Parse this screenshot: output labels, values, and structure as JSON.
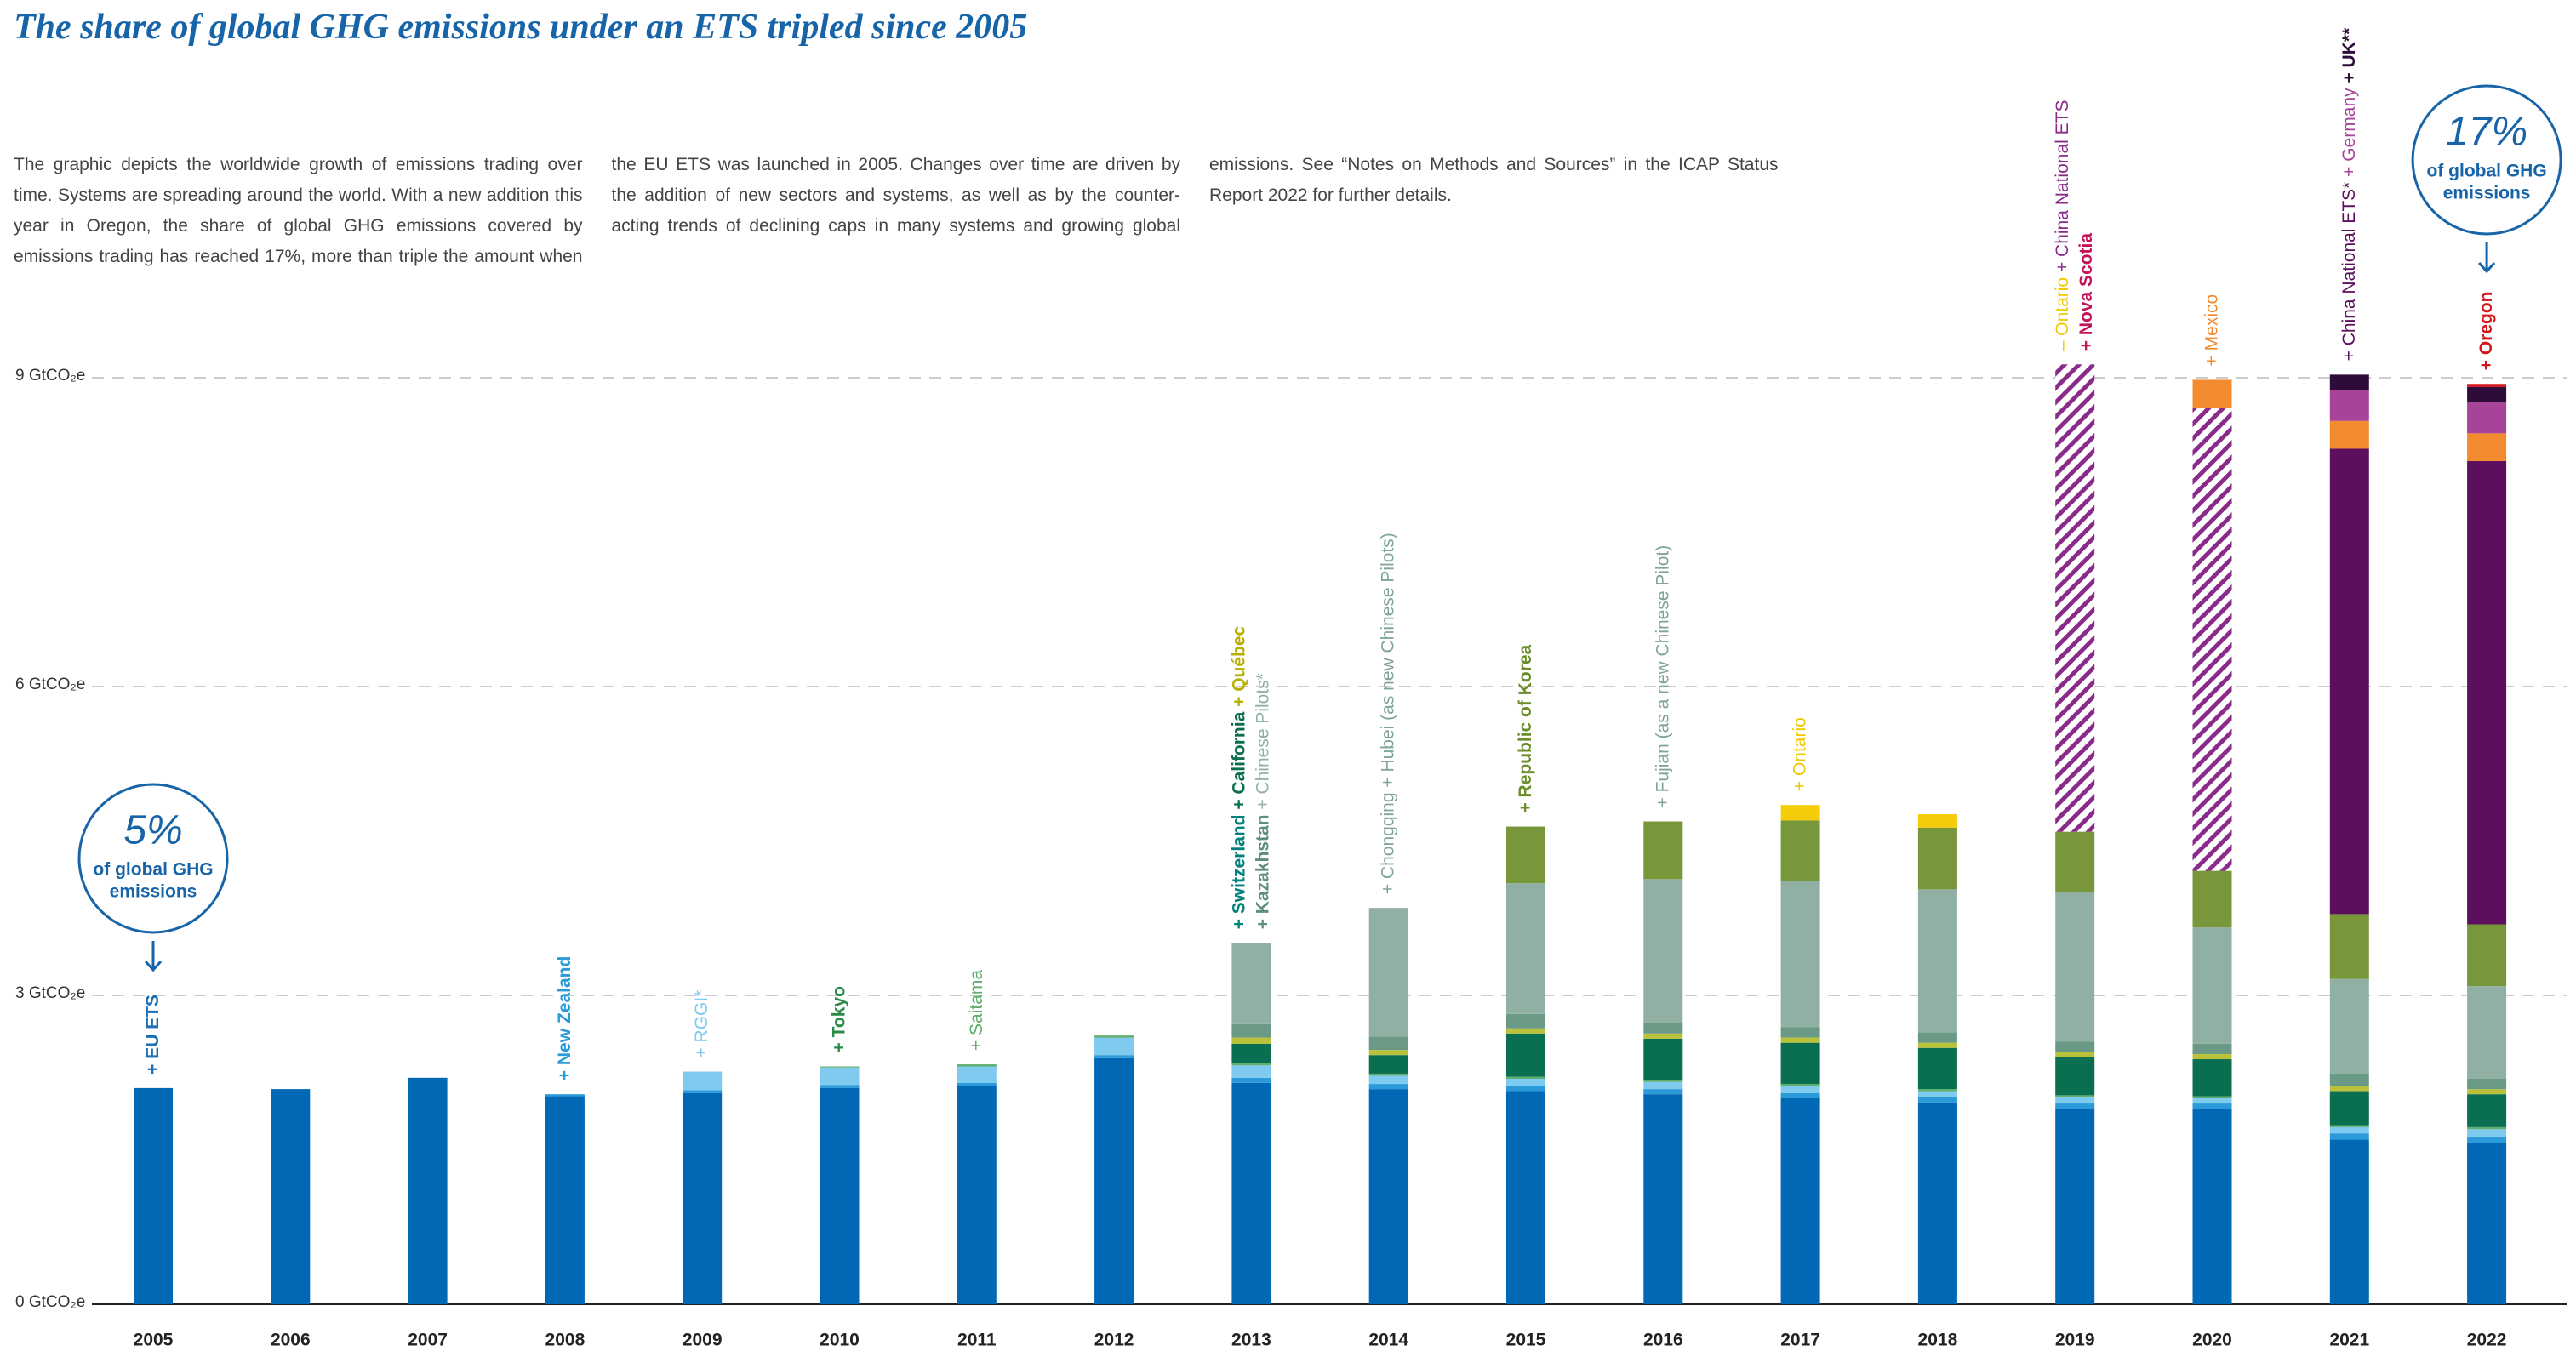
{
  "chart_data": {
    "type": "bar",
    "stacked": true,
    "title": "The share of global GHG emissions under an ETS tripled since 2005",
    "description": "The graphic depicts the worldwide growth of emissions trading over time. Systems are spreading around the world. With a new addition this year in Oregon, the share of global GHG emissions covered by emissions trading has reached 17%, more than triple the amount when the EU ETS was launched in 2005. Changes over time are driven by the addition of new sectors and systems, as well as by the counter-acting trends of declining caps in many systems and growing global emissions. See “Notes on Methods and Sources” in the ICAP Status Report 2022 for further details.",
    "categories": [
      "2005",
      "2006",
      "2007",
      "2008",
      "2009",
      "2010",
      "2011",
      "2012",
      "2013",
      "2014",
      "2015",
      "2016",
      "2017",
      "2018",
      "2019",
      "2020",
      "2021",
      "2022"
    ],
    "ylim": [
      0,
      9
    ],
    "yticks": [
      {
        "value": 0,
        "label": "0 GtCO₂e"
      },
      {
        "value": 3,
        "label": "3 GtCO₂e"
      },
      {
        "value": 6,
        "label": "6 GtCO₂e"
      },
      {
        "value": 9,
        "label": "9 GtCO₂e"
      }
    ],
    "grid": true,
    "series": [
      {
        "color": "#0068b4",
        "values": [
          2.1,
          2.09,
          2.2,
          2.02,
          2.05,
          2.1,
          2.12,
          2.39,
          2.15,
          2.09,
          2.07,
          2.04,
          2.0,
          1.96,
          1.9,
          1.9,
          1.6,
          1.57
        ]
      },
      {
        "color": "#2a9ad8",
        "values": [
          0,
          0,
          0,
          0.02,
          0.03,
          0.03,
          0.03,
          0.03,
          0.05,
          0.05,
          0.05,
          0.05,
          0.05,
          0.05,
          0.05,
          0.05,
          0.06,
          0.06
        ]
      },
      {
        "color": "#7ecbef",
        "values": [
          0,
          0,
          0,
          0,
          0.18,
          0.17,
          0.16,
          0.17,
          0.12,
          0.08,
          0.07,
          0.07,
          0.07,
          0.06,
          0.06,
          0.05,
          0.06,
          0.07
        ]
      },
      {
        "color": "#5fae6b",
        "values": [
          0,
          0,
          0,
          0,
          0,
          0.01,
          0.02,
          0.02,
          0.02,
          0.02,
          0.02,
          0.02,
          0.02,
          0.02,
          0.02,
          0.02,
          0.02,
          0.02
        ]
      },
      {
        "color": "#0a6e50",
        "values": [
          0,
          0,
          0,
          0,
          0,
          0,
          0,
          0,
          0.19,
          0.18,
          0.42,
          0.4,
          0.4,
          0.4,
          0.37,
          0.36,
          0.33,
          0.32
        ]
      },
      {
        "color": "#b9c23a",
        "values": [
          0,
          0,
          0,
          0,
          0,
          0,
          0,
          0,
          0.06,
          0.05,
          0.05,
          0.05,
          0.05,
          0.05,
          0.05,
          0.05,
          0.05,
          0.05
        ]
      },
      {
        "color": "#6a9a86",
        "values": [
          0,
          0,
          0,
          0,
          0,
          0,
          0,
          0,
          0.13,
          0.13,
          0.14,
          0.1,
          0.1,
          0.1,
          0.1,
          0.1,
          0.12,
          0.1
        ]
      },
      {
        "color": "#8fb0a3",
        "values": [
          0,
          0,
          0,
          0,
          0,
          0,
          0,
          0,
          0.79,
          1.25,
          1.27,
          1.4,
          1.42,
          1.39,
          1.45,
          1.13,
          0.92,
          0.9
        ]
      },
      {
        "color": "#78963a",
        "values": [
          0,
          0,
          0,
          0,
          0,
          0,
          0,
          0,
          0,
          0,
          0.55,
          0.56,
          0.59,
          0.6,
          0.59,
          0.55,
          0.63,
          0.6
        ]
      },
      {
        "color": "#f5cc0a",
        "values": [
          0,
          0,
          0,
          0,
          0,
          0,
          0,
          0,
          0,
          0,
          0,
          0,
          0.15,
          0.13,
          0,
          0,
          0,
          0
        ]
      },
      {
        "color": "#8a2b8a",
        "pattern": "hatch",
        "values": [
          0,
          0,
          0,
          0,
          0,
          0,
          0,
          0,
          0,
          0,
          0,
          0,
          0,
          0,
          4.54,
          4.5,
          0,
          0
        ]
      },
      {
        "color": "#5c0f5c",
        "values": [
          0,
          0,
          0,
          0,
          0,
          0,
          0,
          0,
          0,
          0,
          0,
          0,
          0,
          0,
          0,
          0,
          4.52,
          4.5
        ]
      },
      {
        "color": "#f28a30",
        "values": [
          0,
          0,
          0,
          0,
          0,
          0,
          0,
          0,
          0,
          0,
          0,
          0,
          0,
          0,
          0,
          0.27,
          0.27,
          0.27
        ]
      },
      {
        "color": "#a8439a",
        "values": [
          0,
          0,
          0,
          0,
          0,
          0,
          0,
          0,
          0,
          0,
          0,
          0,
          0,
          0,
          0,
          0,
          0.3,
          0.3
        ]
      },
      {
        "color": "#2d0c3a",
        "values": [
          0,
          0,
          0,
          0,
          0,
          0,
          0,
          0,
          0,
          0,
          0,
          0,
          0,
          0,
          0,
          0,
          0.15,
          0.15
        ]
      },
      {
        "color": "#d3141c",
        "values": [
          0,
          0,
          0,
          0,
          0,
          0,
          0,
          0,
          0,
          0,
          0,
          0,
          0,
          0,
          0,
          0,
          0,
          0.03
        ]
      }
    ],
    "annotations": [
      [
        [
          {
            "text": "+ EU ETS",
            "color": "#1a6fb5",
            "bold": true
          }
        ]
      ],
      null,
      null,
      [
        [
          {
            "text": "+ New Zealand",
            "color": "#2a9ad8",
            "bold": true
          }
        ]
      ],
      [
        [
          {
            "text": "+ RGGI*",
            "color": "#7ecbef",
            "bold": false
          }
        ]
      ],
      [
        [
          {
            "text": "+ Tokyo",
            "color": "#2a8a4a",
            "bold": true
          }
        ]
      ],
      [
        [
          {
            "text": "+ Saitama",
            "color": "#5fae6b",
            "bold": false
          }
        ]
      ],
      null,
      [
        [
          {
            "text": "+ Switzerland",
            "color": "#00827a",
            "bold": true
          },
          {
            "text": " + California",
            "color": "#0a6e50",
            "bold": true
          },
          {
            "text": " + Québec",
            "color": "#b5b000",
            "bold": true
          }
        ],
        [
          {
            "text": "+ Kazakhstan",
            "color": "#5f8f7c",
            "bold": true
          },
          {
            "text": " + Chinese Pilots*",
            "color": "#8fb0a3",
            "bold": false
          }
        ]
      ],
      [
        [
          {
            "text": "+ Chongqing + Hubei (as new Chinese Pilots)",
            "color": "#7fa596",
            "bold": false
          }
        ]
      ],
      [
        [
          {
            "text": "+ Republic of Korea",
            "color": "#6b8e2a",
            "bold": true
          }
        ]
      ],
      [
        [
          {
            "text": "+ Fujian (as a new Chinese Pilot)",
            "color": "#7fa596",
            "bold": false
          }
        ]
      ],
      [
        [
          {
            "text": "+ Ontario",
            "color": "#f0c800",
            "bold": false
          }
        ]
      ],
      null,
      [
        [
          {
            "text": "– Ontario",
            "color": "#f0c800",
            "bold": false
          },
          {
            "text": " + China National ETS",
            "color": "#8a2b8a",
            "bold": false
          }
        ],
        [
          {
            "text": "+ Nova Scotia",
            "color": "#c4135a",
            "bold": true
          }
        ]
      ],
      [
        [
          {
            "text": "+ Mexico",
            "color": "#f28a30",
            "bold": false
          }
        ]
      ],
      [
        [
          {
            "text": "+ China National ETS*",
            "color": "#5c0f5c",
            "bold": false
          },
          {
            "text": " + Germany",
            "color": "#a8439a",
            "bold": false
          },
          {
            "text": " + UK**",
            "color": "#2d0c3a",
            "bold": true
          }
        ]
      ],
      [
        [
          {
            "text": "+ Oregon",
            "color": "#d3141c",
            "bold": true
          }
        ]
      ]
    ],
    "callouts": [
      {
        "value": 5,
        "label": "5%",
        "lines": [
          "of global GHG",
          "emissions"
        ],
        "color": "#1764a8"
      },
      null,
      null,
      null,
      null,
      null,
      null,
      null,
      null,
      null,
      null,
      null,
      null,
      null,
      null,
      null,
      null,
      {
        "value": 17,
        "label": "17%",
        "lines": [
          "of global GHG",
          "emissions"
        ],
        "color": "#1764a8"
      }
    ]
  }
}
